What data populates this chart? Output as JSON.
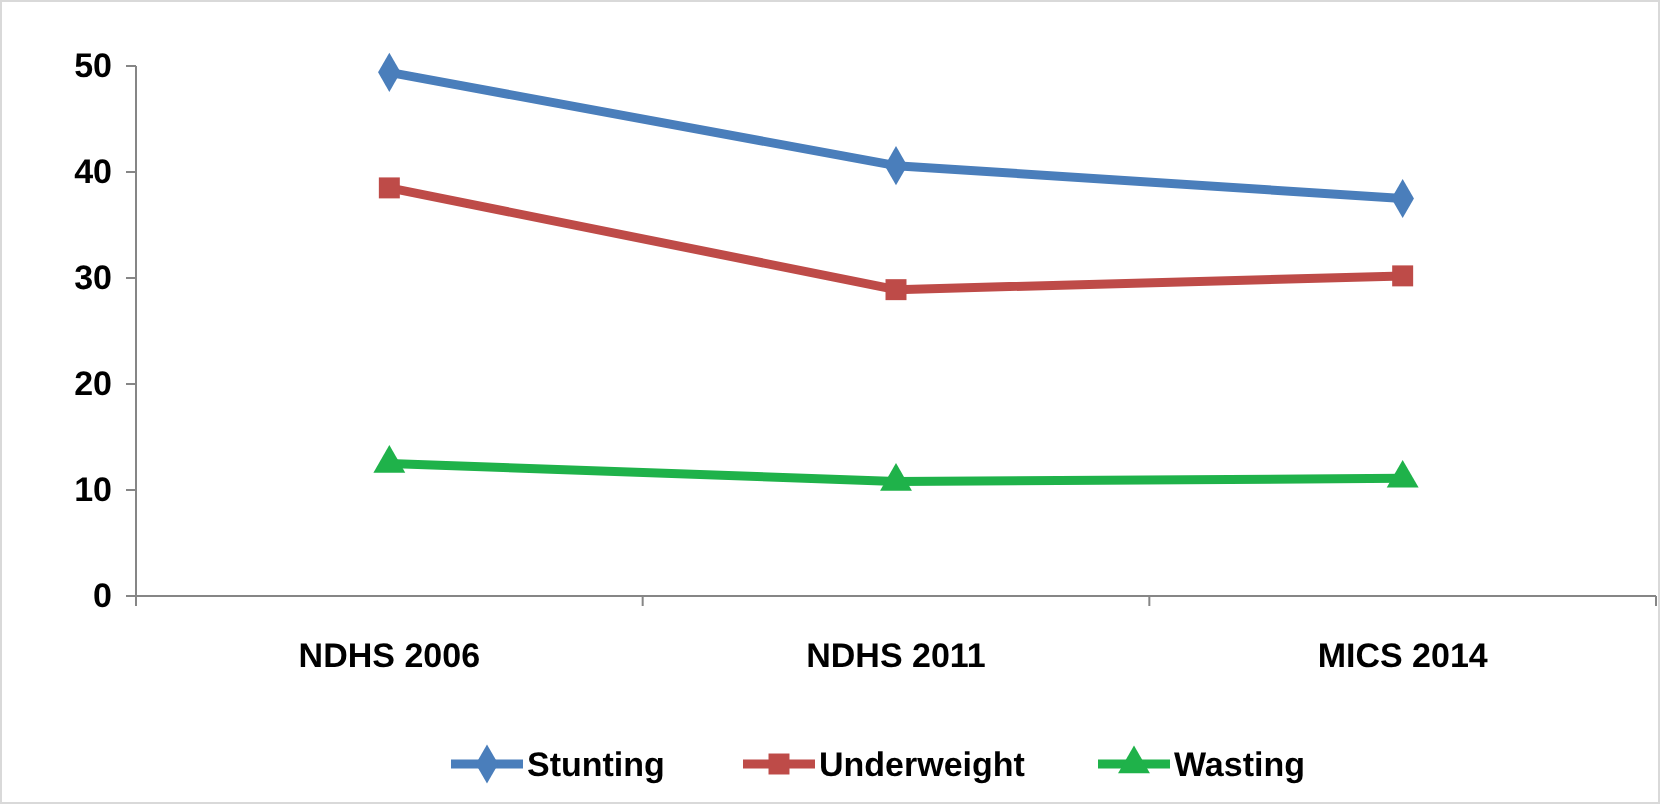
{
  "chart_data": {
    "type": "line",
    "categories": [
      "NDHS 2006",
      "NDHS 2011",
      "MICS 2014"
    ],
    "series": [
      {
        "name": "Stunting",
        "color": "#4a7ebb",
        "marker": "diamond",
        "values": [
          49.4,
          40.6,
          37.5
        ]
      },
      {
        "name": "Underweight",
        "color": "#be4b48",
        "marker": "square",
        "values": [
          38.5,
          28.9,
          30.2
        ]
      },
      {
        "name": "Wasting",
        "color": "#1fb24a",
        "marker": "triangle",
        "values": [
          12.5,
          10.8,
          11.1
        ]
      }
    ],
    "ylim": [
      0,
      50
    ],
    "yticks": [
      0,
      10,
      20,
      30,
      40,
      50
    ],
    "grid": false,
    "legend": "bottom",
    "line_style": "solid"
  }
}
